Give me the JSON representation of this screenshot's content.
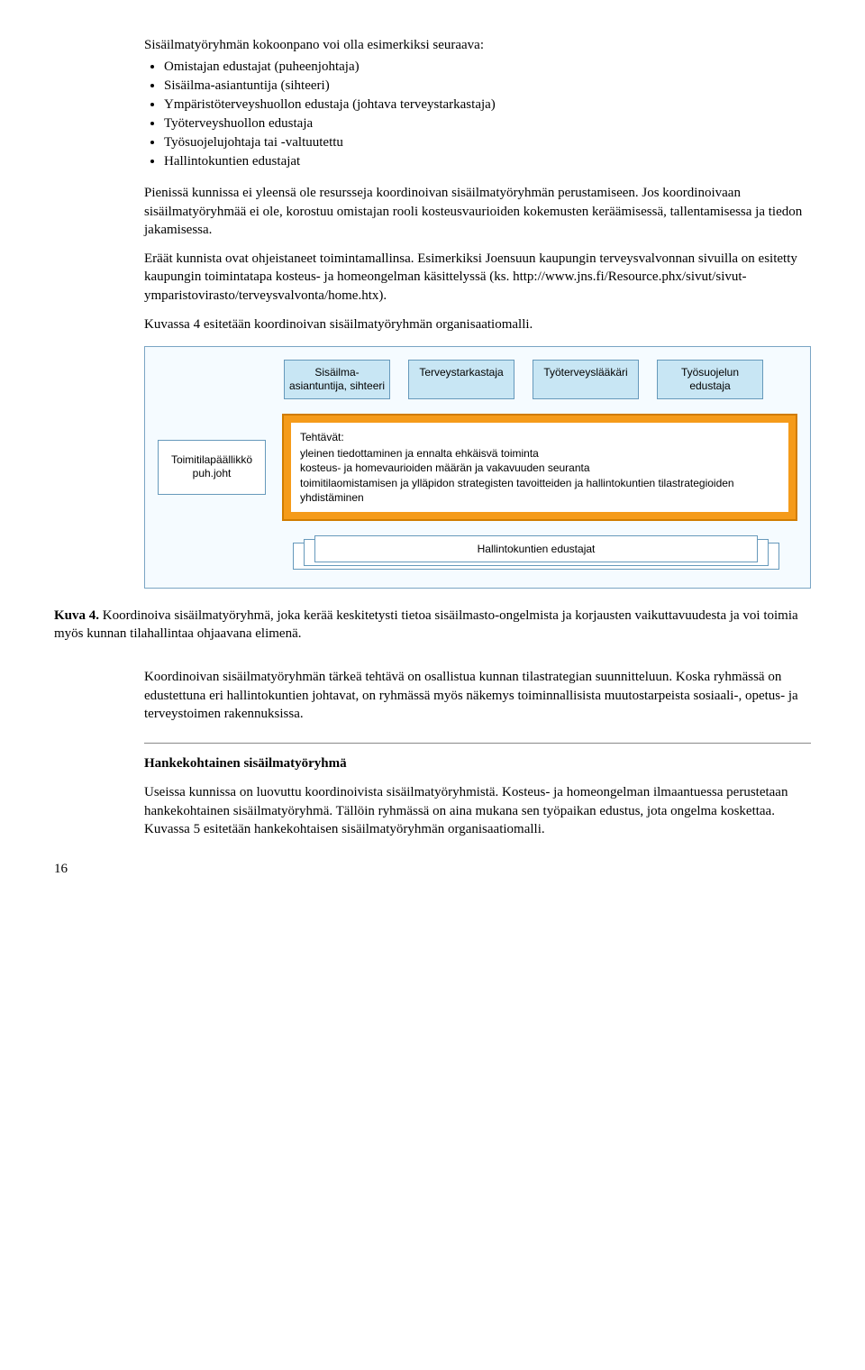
{
  "intro": "Sisäilmatyöryhmän kokoonpano voi olla esimerkiksi seuraava:",
  "list": [
    "Omistajan edustajat (puheenjohtaja)",
    "Sisäilma-asiantuntija (sihteeri)",
    "Ympäristöterveyshuollon edustaja (johtava terveystarkastaja)",
    "Työterveyshuollon edustaja",
    "Työsuojelujohtaja tai -valtuutettu",
    "Hallintokuntien edustajat"
  ],
  "para1": "Pienissä kunnissa ei yleensä ole resursseja koordinoivan sisäilmatyöryhmän perustamiseen. Jos koordinoivaan sisäilmatyöryhmää ei ole, korostuu omistajan rooli kosteusvaurioiden kokemusten keräämisessä, tallentamisessa ja tiedon jakamisessa.",
  "para2": "Eräät kunnista ovat ohjeistaneet toimintamallinsa. Esimerkiksi Joensuun kaupungin terveysvalvonnan sivuilla on esitetty kaupungin toimintatapa kosteus- ja homeongelman käsittelyssä (ks. http://www.jns.fi/Resource.phx/sivut/sivut-ymparistovirasto/terveysvalvonta/home.htx).",
  "para3": "Kuvassa 4 esitetään koordinoivan sisäilmatyöryhmän organisaatiomalli.",
  "diagram": {
    "top": [
      "Sisäilma-asiantuntija, sihteeri",
      "Terveystarkastaja",
      "Työterveyslääkäri",
      "Työsuojelun edustaja"
    ],
    "left": "Toimitilapäällikkö puh.joht",
    "tasks_title": "Tehtävät:",
    "tasks": [
      "yleinen tiedottaminen ja ennalta ehkäisvä toiminta",
      "kosteus- ja homevaurioiden määrän ja vakavuuden seuranta",
      "toimitilaomistamisen ja ylläpidon strategisten tavoitteiden ja hallintokuntien tilastrategioiden yhdistäminen"
    ],
    "bottom": "Hallintokuntien edustajat"
  },
  "fig4num": "Kuva 4.",
  "fig4": " Koordinoiva sisäilmatyöryhmä, joka kerää keskitetysti tietoa sisäilmasto-ongelmista ja korjausten vaikuttavuudesta ja voi toimia myös kunnan tilahallintaa ohjaavana elimenä.",
  "para4": "Koordinoivan sisäilmatyöryhmän tärkeä tehtävä on osallistua kunnan tilastrategian suunnitteluun. Koska ryhmässä on edustettuna eri hallintokuntien johtavat, on ryhmässä myös näkemys toiminnallisista muutostarpeista sosiaali-, opetus- ja terveystoimen rakennuksissa.",
  "heading2": "Hankekohtainen sisäilmatyöryhmä",
  "para5": "Useissa kunnissa on luovuttu koordinoivista sisäilmatyöryhmistä. Kosteus- ja homeongelman ilmaantuessa perustetaan hankekohtainen sisäilmatyöryhmä. Tällöin ryhmässä on aina mukana sen työpaikan edustus, jota ongelma koskettaa. Kuvassa 5 esitetään hankekohtaisen sisäilmatyöryhmän organisaatiomalli.",
  "pagenum": "16"
}
